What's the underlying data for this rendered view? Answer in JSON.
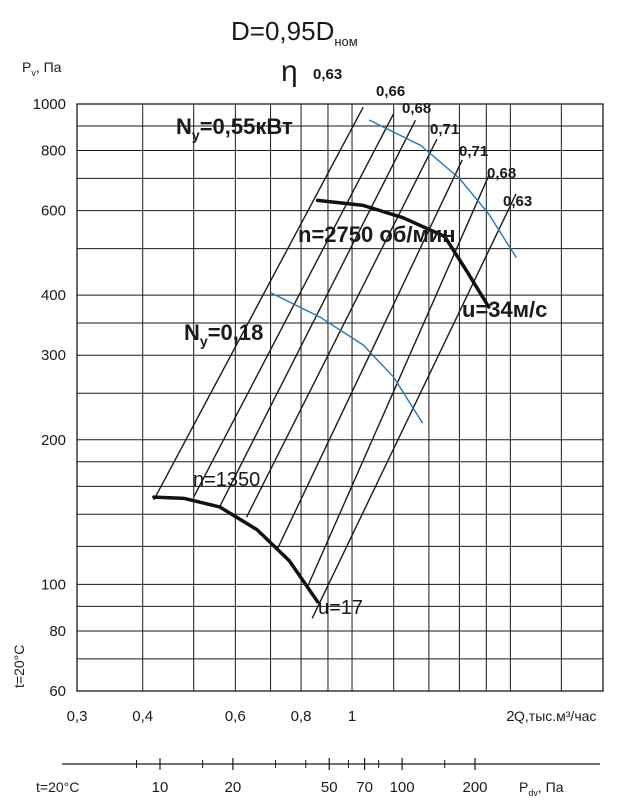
{
  "chart_data": {
    "type": "line",
    "title": "D=0,95D",
    "title_sub": "ном",
    "ylabel_main": "P",
    "ylabel_sub": "v",
    "ylabel_unit": ", Па",
    "xlabel": "Q,тыс.м³/час",
    "temperature_label": "t=20°C",
    "x_scale": "log",
    "y_scale": "log",
    "xlim": [
      0.3,
      3.0
    ],
    "ylim": [
      60,
      1000
    ],
    "grid": true,
    "x_ticks": [
      {
        "v": 0.3,
        "label": "0,3"
      },
      {
        "v": 0.4,
        "label": "0,4"
      },
      {
        "v": 0.6,
        "label": "0,6"
      },
      {
        "v": 0.8,
        "label": "0,8"
      },
      {
        "v": 1.0,
        "label": "1"
      },
      {
        "v": 2.0,
        "label": "2"
      }
    ],
    "x_grid": [
      0.3,
      0.4,
      0.5,
      0.6,
      0.7,
      0.8,
      0.9,
      1.0,
      1.2,
      1.4,
      1.6,
      1.8,
      2.0,
      2.5,
      3.0
    ],
    "y_ticks": [
      {
        "v": 60,
        "label": "60"
      },
      {
        "v": 80,
        "label": "80"
      },
      {
        "v": 100,
        "label": "100"
      },
      {
        "v": 200,
        "label": "200"
      },
      {
        "v": 300,
        "label": "300"
      },
      {
        "v": 400,
        "label": "400"
      },
      {
        "v": 600,
        "label": "600"
      },
      {
        "v": 800,
        "label": "800"
      },
      {
        "v": 1000,
        "label": "1000"
      }
    ],
    "y_grid": [
      60,
      70,
      80,
      90,
      100,
      120,
      140,
      160,
      180,
      200,
      250,
      300,
      350,
      400,
      500,
      600,
      700,
      800,
      900,
      1000
    ],
    "dynamic_axis": {
      "label_main": "P",
      "label_sub": "dv",
      "label_unit": ",  Па",
      "temperature_label": "t=20°C",
      "ticks": [
        {
          "v": 10,
          "label": "10"
        },
        {
          "v": 20,
          "label": "20"
        },
        {
          "v": 50,
          "label": "50"
        },
        {
          "v": 70,
          "label": "70"
        },
        {
          "v": 100,
          "label": "100"
        },
        {
          "v": 200,
          "label": "200"
        }
      ],
      "minor_ticks": [
        8,
        15,
        30,
        40,
        60,
        80,
        150
      ]
    },
    "series": [
      {
        "name": "n=2750 об/мин",
        "kind": "speed",
        "points": [
          [
            0.86,
            630
          ],
          [
            1.05,
            615
          ],
          [
            1.25,
            580
          ],
          [
            1.5,
            530
          ],
          [
            1.65,
            450
          ],
          [
            1.82,
            378
          ]
        ]
      },
      {
        "name": "n=1350",
        "kind": "speed",
        "points": [
          [
            0.42,
            152
          ],
          [
            0.48,
            151
          ],
          [
            0.56,
            145
          ],
          [
            0.66,
            130
          ],
          [
            0.76,
            112
          ],
          [
            0.86,
            92
          ]
        ]
      },
      {
        "name": "N=0,55кВт",
        "kind": "power",
        "points": [
          [
            1.08,
            925
          ],
          [
            1.35,
            820
          ],
          [
            1.6,
            700
          ],
          [
            1.82,
            590
          ],
          [
            2.05,
            480
          ]
        ]
      },
      {
        "name": "N=0,18",
        "kind": "power",
        "points": [
          [
            0.7,
            405
          ],
          [
            0.87,
            360
          ],
          [
            1.05,
            315
          ],
          [
            1.2,
            270
          ],
          [
            1.36,
            217
          ]
        ]
      }
    ],
    "efficiency_lines": [
      {
        "label": "0,63",
        "from": [
          0.42,
          150
        ],
        "to": [
          1.05,
          985
        ]
      },
      {
        "label": "0,66",
        "from": [
          0.5,
          152
        ],
        "to": [
          1.2,
          955
        ]
      },
      {
        "label": "0,68",
        "from": [
          0.56,
          145
        ],
        "to": [
          1.32,
          925
        ]
      },
      {
        "label": "0,71",
        "from": [
          0.63,
          138
        ],
        "to": [
          1.45,
          845
        ]
      },
      {
        "label": "0,71",
        "from": [
          0.72,
          118
        ],
        "to": [
          1.62,
          765
        ]
      },
      {
        "label": "0,68",
        "from": [
          0.82,
          98
        ],
        "to": [
          1.82,
          710
        ]
      },
      {
        "label": "0,63",
        "from": [
          0.84,
          85
        ],
        "to": [
          2.05,
          650
        ]
      }
    ],
    "annotations": [
      {
        "text": "u=34м/с",
        "at": [
          1.85,
          378
        ]
      },
      {
        "text": "u=17",
        "at": [
          0.9,
          88
        ]
      }
    ],
    "eta_symbol": "η",
    "power_symbol": "N",
    "power_sub": "y",
    "power_high_value": "=0,55кВт",
    "power_low_value": "=0,18"
  }
}
